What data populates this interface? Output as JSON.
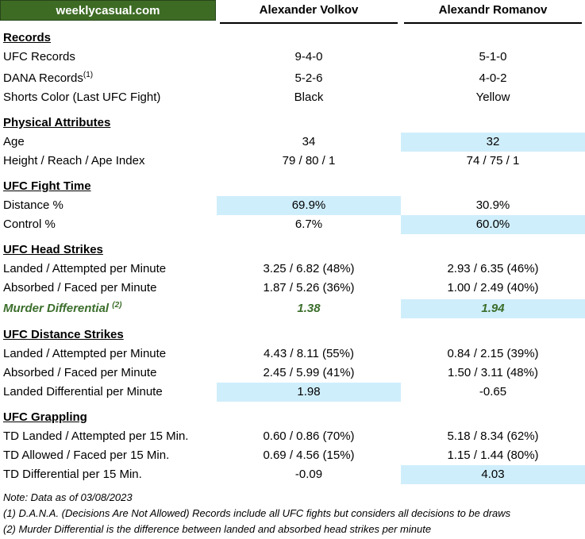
{
  "brand": "weeklycasual.com",
  "fighters": {
    "a": "Alexander Volkov",
    "b": "Alexandr Romanov"
  },
  "sections": {
    "records": {
      "title": "Records",
      "ufc": {
        "label": "UFC Records",
        "a": "9-4-0",
        "b": "5-1-0"
      },
      "dana": {
        "label": "DANA Records",
        "footnote": "(1)",
        "a": "5-2-6",
        "b": "4-0-2"
      },
      "shorts": {
        "label": "Shorts Color (Last UFC Fight)",
        "a": "Black",
        "b": "Yellow"
      }
    },
    "physical": {
      "title": "Physical Attributes",
      "age": {
        "label": "Age",
        "a": "34",
        "b": "32"
      },
      "hra": {
        "label": "Height / Reach / Ape Index",
        "a": "79 / 80 / 1",
        "b": "74 / 75 / 1"
      }
    },
    "fight_time": {
      "title": "UFC Fight Time",
      "distance": {
        "label": "Distance %",
        "a": "69.9%",
        "b": "30.9%"
      },
      "control": {
        "label": "Control %",
        "a": "6.7%",
        "b": "60.0%"
      }
    },
    "head": {
      "title": "UFC Head Strikes",
      "landed": {
        "label": "Landed / Attempted per Minute",
        "a": "3.25 / 6.82 (48%)",
        "b": "2.93 / 6.35 (46%)"
      },
      "absorbed": {
        "label": "Absorbed / Faced per Minute",
        "a": "1.87 / 5.26 (36%)",
        "b": "1.00 / 2.49 (40%)"
      },
      "murder": {
        "label": "Murder Differential",
        "footnote": "(2)",
        "a": "1.38",
        "b": "1.94"
      }
    },
    "distance": {
      "title": "UFC Distance Strikes",
      "landed": {
        "label": "Landed / Attempted per Minute",
        "a": "4.43 / 8.11 (55%)",
        "b": "0.84 / 2.15 (39%)"
      },
      "absorbed": {
        "label": "Absorbed / Faced per Minute",
        "a": "2.45 / 5.99 (41%)",
        "b": "1.50 / 3.11 (48%)"
      },
      "diff": {
        "label": "Landed Differential per Minute",
        "a": "1.98",
        "b": "-0.65"
      }
    },
    "grappling": {
      "title": "UFC Grappling",
      "td_landed": {
        "label": "TD Landed / Attempted per 15 Min.",
        "a": "0.60 / 0.86 (70%)",
        "b": "5.18 / 8.34 (62%)"
      },
      "td_allowed": {
        "label": "TD Allowed / Faced per 15 Min.",
        "a": "0.69 / 4.56 (15%)",
        "b": "1.15 / 1.44 (80%)"
      },
      "td_diff": {
        "label": "TD Differential per 15 Min.",
        "a": "-0.09",
        "b": "4.03"
      }
    }
  },
  "notes": {
    "date": "Note: Data as of 03/08/2023",
    "n1": "(1) D.A.N.A. (Decisions Are Not Allowed) Records include all UFC fights but considers all decisions to be draws",
    "n2": "(2) Murder Differential is the difference between landed and absorbed head strikes per minute"
  },
  "colors": {
    "brand_bg": "#3d6b24",
    "highlight": "#cfeefb",
    "murder_text": "#3b6e2b"
  }
}
